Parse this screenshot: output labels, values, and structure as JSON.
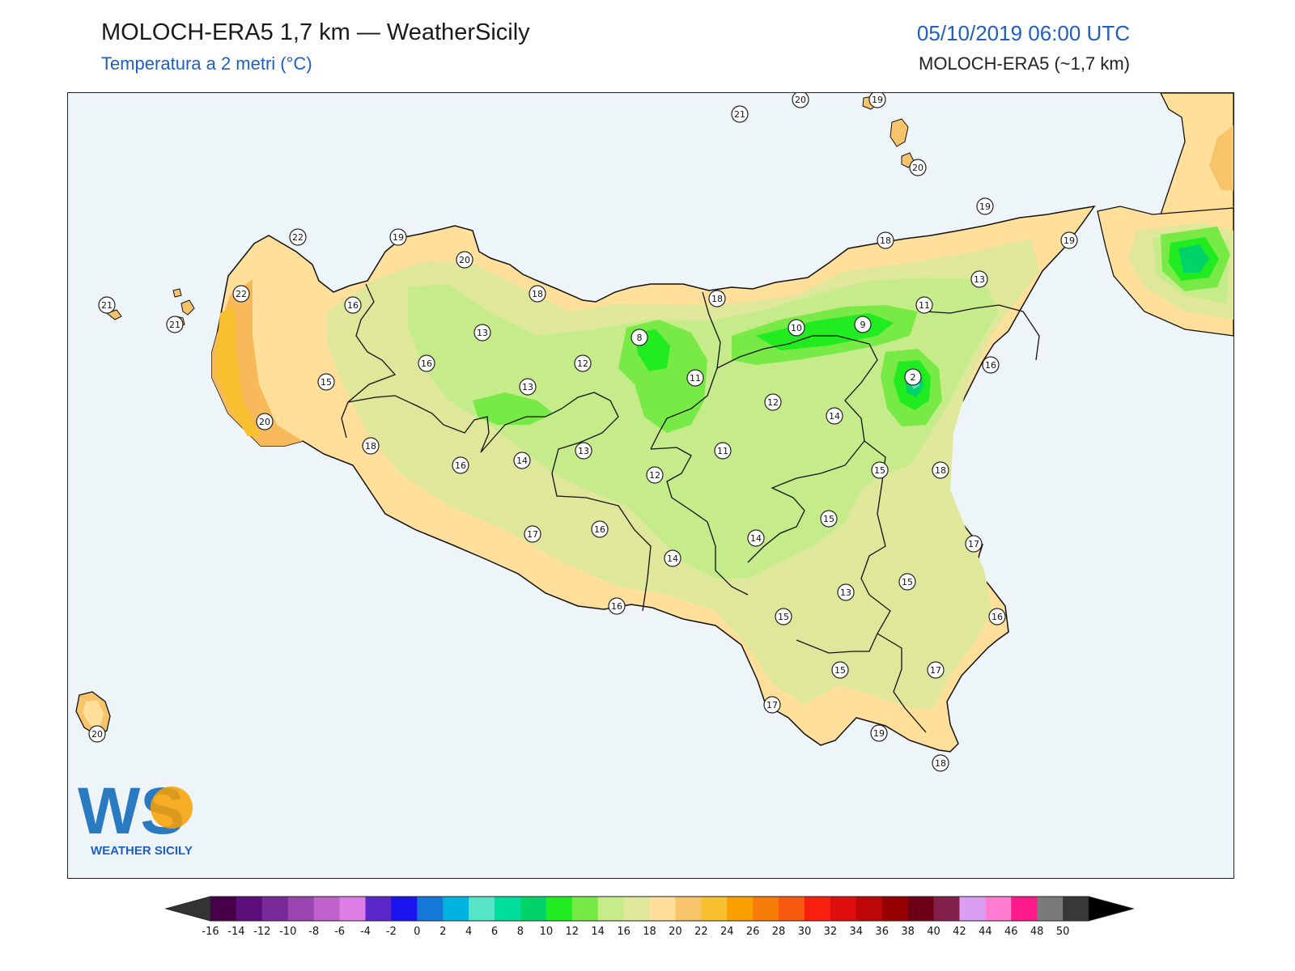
{
  "header": {
    "title": "MOLOCH-ERA5 1,7 km — WeatherSicily",
    "subtitle": "Temperatura a 2 metri (°C)",
    "datetime": "05/10/2019 06:00 UTC",
    "model": "MOLOCH-ERA5 (~1,7 km)"
  },
  "logo": {
    "mark": "WS",
    "text": "WEATHER SICILY"
  },
  "colors": {
    "sea": "#edf5f9",
    "land_cool": "#c6eb8a",
    "land_mild": "#dfe89a",
    "land_warm": "#ffdf9a",
    "land_hot": "#f7b95a",
    "border": "#111111"
  },
  "stations": [
    {
      "value": "21"
    },
    {
      "value": "20"
    },
    {
      "value": "19"
    },
    {
      "value": "20"
    },
    {
      "value": "22"
    },
    {
      "value": "19"
    },
    {
      "value": "20"
    },
    {
      "value": "19"
    },
    {
      "value": "18"
    },
    {
      "value": "19"
    },
    {
      "value": "21"
    },
    {
      "value": "22"
    },
    {
      "value": "16"
    },
    {
      "value": "21"
    },
    {
      "value": "18"
    },
    {
      "value": "18"
    },
    {
      "value": "13"
    },
    {
      "value": "11"
    },
    {
      "value": "13"
    },
    {
      "value": "8"
    },
    {
      "value": "10"
    },
    {
      "value": "9"
    },
    {
      "value": "16"
    },
    {
      "value": "12"
    },
    {
      "value": "16"
    },
    {
      "value": "11"
    },
    {
      "value": "15"
    },
    {
      "value": "13"
    },
    {
      "value": "2"
    },
    {
      "value": "12"
    },
    {
      "value": "20"
    },
    {
      "value": "14"
    },
    {
      "value": "18"
    },
    {
      "value": "13"
    },
    {
      "value": "11"
    },
    {
      "value": "16"
    },
    {
      "value": "14"
    },
    {
      "value": "15"
    },
    {
      "value": "18"
    },
    {
      "value": "12"
    },
    {
      "value": "15"
    },
    {
      "value": "17"
    },
    {
      "value": "16"
    },
    {
      "value": "14"
    },
    {
      "value": "17"
    },
    {
      "value": "14"
    },
    {
      "value": "15"
    },
    {
      "value": "13"
    },
    {
      "value": "16"
    },
    {
      "value": "16"
    },
    {
      "value": "15"
    },
    {
      "value": "17"
    },
    {
      "value": "15"
    },
    {
      "value": "17"
    },
    {
      "value": "19"
    },
    {
      "value": "20"
    },
    {
      "value": "18"
    }
  ],
  "colorbar": {
    "labels": [
      "-16",
      "-14",
      "-12",
      "-10",
      "-8",
      "-6",
      "-4",
      "-2",
      "0",
      "2",
      "4",
      "6",
      "8",
      "10",
      "12",
      "14",
      "16",
      "18",
      "20",
      "22",
      "24",
      "26",
      "28",
      "30",
      "32",
      "34",
      "36",
      "38",
      "40",
      "42",
      "44",
      "46",
      "48",
      "50"
    ],
    "colors": [
      "#46004a",
      "#5c0f7a",
      "#7a2b9a",
      "#9a45b0",
      "#c062cc",
      "#e07ee8",
      "#5a28c8",
      "#1a14ee",
      "#1577d8",
      "#00b4e0",
      "#56e4c8",
      "#00de9e",
      "#00d468",
      "#20ec20",
      "#78ea46",
      "#c6eb8a",
      "#dfe89a",
      "#ffdf9a",
      "#f7c46a",
      "#f9c030",
      "#f8a000",
      "#f87c08",
      "#f85a10",
      "#f81e10",
      "#de0e0e",
      "#be0808",
      "#960000",
      "#6e0016",
      "#82204a",
      "#da9ef2",
      "#ff7cd0",
      "#ff1a8c",
      "#7a7a7a",
      "#383838"
    ],
    "under_color": "#333333",
    "over_color": "#000000"
  }
}
